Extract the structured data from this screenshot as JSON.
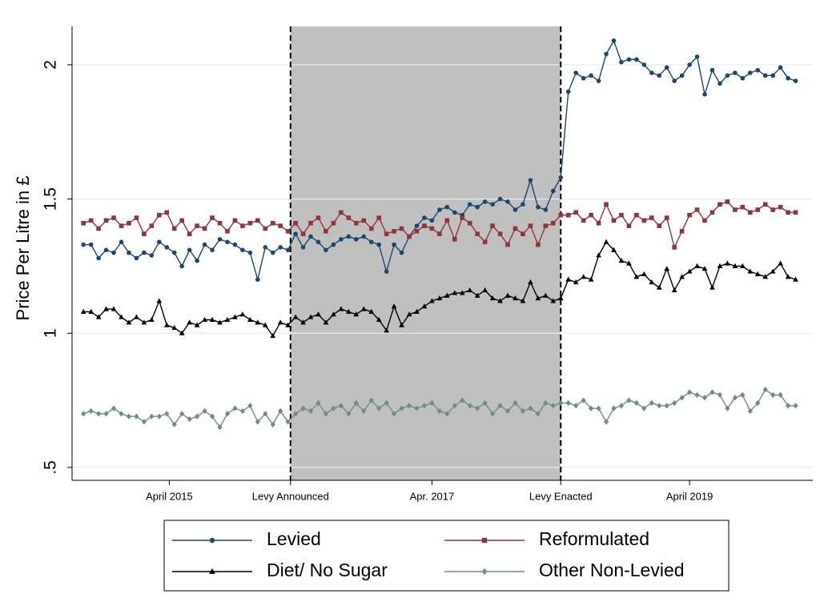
{
  "chart_data": {
    "type": "line",
    "y_label": "Price Per Litre in £",
    "x": [
      0,
      3,
      6,
      9,
      12,
      15,
      18,
      21,
      24,
      27,
      30,
      33,
      36,
      39,
      42,
      45,
      48,
      51,
      54,
      57,
      60,
      63,
      66,
      69,
      72,
      75,
      78,
      81,
      84,
      87,
      90,
      93,
      96,
      99,
      102,
      105,
      108,
      111,
      114,
      117,
      120,
      123,
      126,
      129,
      132,
      135,
      138,
      141,
      144,
      147,
      150,
      153,
      156,
      159,
      162,
      165,
      168,
      171,
      174,
      177,
      180,
      183,
      186,
      189,
      192,
      195,
      198,
      201,
      204,
      207,
      210,
      213,
      216,
      219,
      222,
      225,
      228,
      231,
      234,
      237,
      240,
      243,
      246,
      249,
      252,
      255,
      258,
      261,
      264,
      267,
      270,
      273,
      276,
      279,
      282
    ],
    "xlim": [
      -4.5,
      288.8
    ],
    "xticks": [
      {
        "value": 34,
        "label": "April 2015"
      },
      {
        "value": 82,
        "label": "Levy Announced"
      },
      {
        "value": 138,
        "label": "Apr. 2017"
      },
      {
        "value": 189,
        "label": "Levy Enacted"
      },
      {
        "value": 240,
        "label": "April 2019"
      }
    ],
    "ylim": [
      0.452,
      2.143
    ],
    "yticks": [
      2,
      1.5,
      1,
      {
        "value": 0.5,
        "label": ".5"
      }
    ],
    "grid": true,
    "series": [
      {
        "name": "Levied",
        "color": "#1a476f",
        "marker": "circle",
        "values": [
          1.33,
          1.33,
          1.28,
          1.31,
          1.3,
          1.34,
          1.3,
          1.28,
          1.3,
          1.29,
          1.34,
          1.32,
          1.3,
          1.25,
          1.31,
          1.27,
          1.33,
          1.31,
          1.35,
          1.34,
          1.33,
          1.31,
          1.3,
          1.2,
          1.32,
          1.3,
          1.32,
          1.31,
          1.37,
          1.32,
          1.36,
          1.34,
          1.31,
          1.33,
          1.35,
          1.36,
          1.35,
          1.36,
          1.34,
          1.33,
          1.23,
          1.33,
          1.3,
          1.36,
          1.4,
          1.43,
          1.42,
          1.46,
          1.47,
          1.45,
          1.44,
          1.48,
          1.47,
          1.49,
          1.48,
          1.5,
          1.49,
          1.46,
          1.48,
          1.57,
          1.47,
          1.46,
          1.53,
          1.58,
          1.9,
          1.97,
          1.95,
          1.96,
          1.94,
          2.04,
          2.09,
          2.01,
          2.02,
          2.02,
          2.0,
          1.97,
          1.96,
          1.99,
          1.94,
          1.96,
          2.0,
          2.03,
          1.89,
          1.98,
          1.93,
          1.96,
          1.97,
          1.95,
          1.97,
          1.98,
          1.96,
          1.96,
          1.99,
          1.95,
          1.94
        ]
      },
      {
        "name": "Reformulated",
        "color": "#90353b",
        "marker": "square",
        "values": [
          1.41,
          1.42,
          1.39,
          1.42,
          1.43,
          1.4,
          1.41,
          1.43,
          1.37,
          1.4,
          1.44,
          1.45,
          1.39,
          1.42,
          1.37,
          1.4,
          1.39,
          1.43,
          1.41,
          1.38,
          1.42,
          1.4,
          1.41,
          1.42,
          1.39,
          1.41,
          1.4,
          1.38,
          1.41,
          1.37,
          1.41,
          1.43,
          1.38,
          1.41,
          1.45,
          1.43,
          1.41,
          1.42,
          1.39,
          1.43,
          1.37,
          1.38,
          1.39,
          1.36,
          1.38,
          1.4,
          1.39,
          1.37,
          1.42,
          1.35,
          1.43,
          1.41,
          1.37,
          1.34,
          1.4,
          1.37,
          1.33,
          1.39,
          1.37,
          1.4,
          1.33,
          1.4,
          1.41,
          1.44,
          1.44,
          1.45,
          1.42,
          1.44,
          1.41,
          1.48,
          1.42,
          1.44,
          1.4,
          1.44,
          1.42,
          1.43,
          1.4,
          1.43,
          1.32,
          1.38,
          1.44,
          1.46,
          1.42,
          1.45,
          1.48,
          1.49,
          1.46,
          1.47,
          1.45,
          1.46,
          1.48,
          1.46,
          1.47,
          1.45,
          1.45
        ]
      },
      {
        "name": "Diet/ No Sugar",
        "color": "#000000",
        "marker": "triangle",
        "values": [
          1.08,
          1.08,
          1.06,
          1.09,
          1.09,
          1.06,
          1.04,
          1.06,
          1.04,
          1.05,
          1.12,
          1.03,
          1.02,
          1.0,
          1.04,
          1.03,
          1.05,
          1.05,
          1.04,
          1.05,
          1.06,
          1.07,
          1.05,
          1.04,
          1.03,
          0.99,
          1.04,
          1.03,
          1.06,
          1.04,
          1.06,
          1.07,
          1.04,
          1.07,
          1.09,
          1.08,
          1.07,
          1.09,
          1.08,
          1.05,
          1.01,
          1.1,
          1.03,
          1.07,
          1.08,
          1.1,
          1.12,
          1.13,
          1.14,
          1.15,
          1.15,
          1.16,
          1.14,
          1.16,
          1.13,
          1.12,
          1.14,
          1.13,
          1.12,
          1.19,
          1.13,
          1.14,
          1.12,
          1.13,
          1.2,
          1.19,
          1.21,
          1.2,
          1.29,
          1.34,
          1.31,
          1.27,
          1.26,
          1.21,
          1.22,
          1.19,
          1.17,
          1.24,
          1.16,
          1.21,
          1.23,
          1.25,
          1.24,
          1.17,
          1.25,
          1.26,
          1.25,
          1.25,
          1.23,
          1.22,
          1.21,
          1.23,
          1.26,
          1.21,
          1.2
        ]
      },
      {
        "name": "Other Non-Levied",
        "color": "#6e8e84",
        "marker": "diamond",
        "values": [
          0.7,
          0.71,
          0.7,
          0.7,
          0.72,
          0.7,
          0.69,
          0.69,
          0.67,
          0.69,
          0.69,
          0.7,
          0.66,
          0.7,
          0.68,
          0.69,
          0.71,
          0.69,
          0.65,
          0.7,
          0.72,
          0.71,
          0.73,
          0.67,
          0.7,
          0.66,
          0.71,
          0.67,
          0.7,
          0.72,
          0.71,
          0.74,
          0.7,
          0.72,
          0.73,
          0.7,
          0.74,
          0.71,
          0.75,
          0.72,
          0.74,
          0.7,
          0.72,
          0.73,
          0.72,
          0.73,
          0.74,
          0.71,
          0.7,
          0.73,
          0.75,
          0.73,
          0.72,
          0.74,
          0.7,
          0.73,
          0.71,
          0.74,
          0.71,
          0.72,
          0.7,
          0.74,
          0.73,
          0.74,
          0.74,
          0.73,
          0.75,
          0.72,
          0.72,
          0.67,
          0.72,
          0.73,
          0.75,
          0.74,
          0.72,
          0.74,
          0.73,
          0.73,
          0.74,
          0.76,
          0.78,
          0.77,
          0.76,
          0.78,
          0.77,
          0.72,
          0.76,
          0.77,
          0.71,
          0.74,
          0.79,
          0.77,
          0.77,
          0.73,
          0.73
        ]
      }
    ]
  }
}
